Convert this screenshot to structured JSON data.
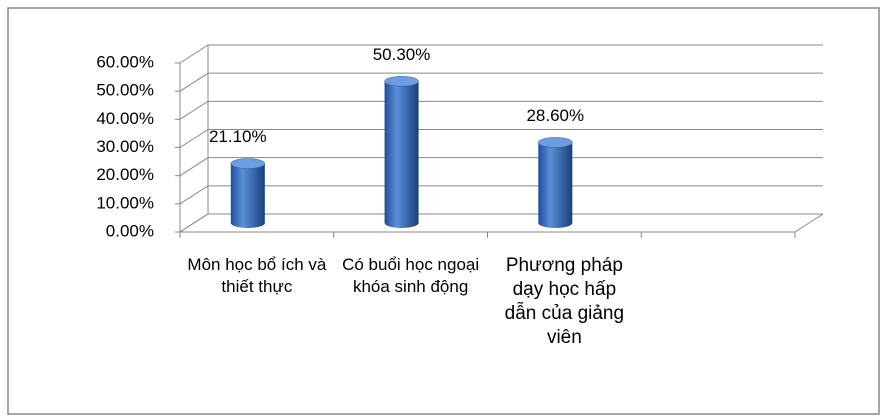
{
  "chart_data": {
    "type": "bar3d",
    "categories": [
      "Môn học bổ ích và thiết thực",
      "Có buổi học ngoại khóa sinh động",
      "Phương pháp dạy học hấp dẫn của giảng viên",
      null
    ],
    "values": [
      21.1,
      50.3,
      28.6,
      null
    ],
    "value_labels": [
      "21.10%",
      "50.30%",
      "28.60%",
      null
    ],
    "color": "#3a6fbf",
    "ylim": [
      0,
      60
    ],
    "yticks": [
      {
        "value": 0,
        "label": "0.00%"
      },
      {
        "value": 10,
        "label": "10.00%"
      },
      {
        "value": 20,
        "label": "20.00%"
      },
      {
        "value": 30,
        "label": "30.00%"
      },
      {
        "value": 40,
        "label": "40.00%"
      },
      {
        "value": 50,
        "label": "50.00%"
      },
      {
        "value": 60,
        "label": "60.00%"
      }
    ],
    "grid": true
  }
}
